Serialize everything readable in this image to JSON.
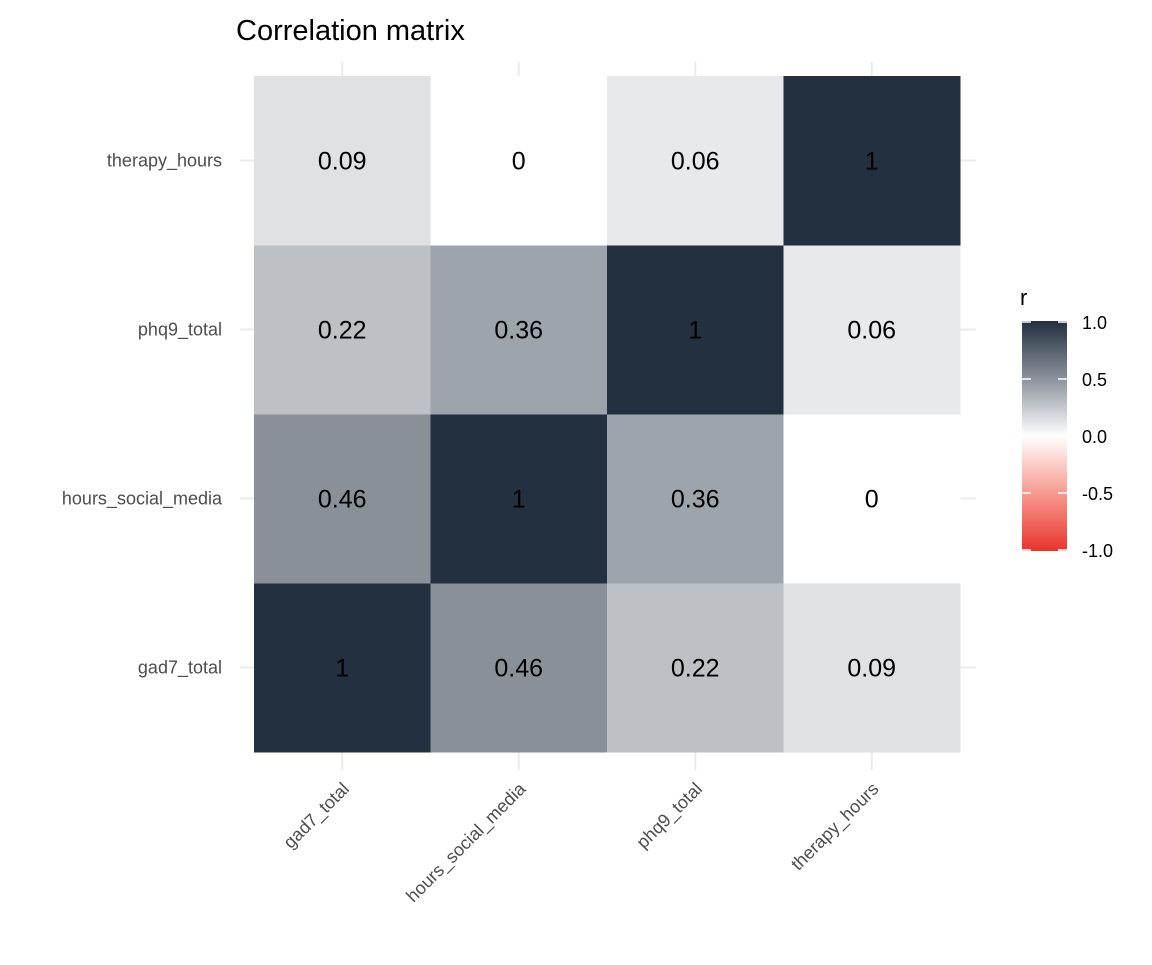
{
  "chart_data": {
    "type": "heatmap",
    "title": "Correlation matrix",
    "x_categories": [
      "gad7_total",
      "hours_social_media",
      "phq9_total",
      "therapy_hours"
    ],
    "y_categories": [
      "gad7_total",
      "hours_social_media",
      "phq9_total",
      "therapy_hours"
    ],
    "values": [
      [
        1,
        0.46,
        0.22,
        0.09
      ],
      [
        0.46,
        1,
        0.36,
        0
      ],
      [
        0.22,
        0.36,
        1,
        0.06
      ],
      [
        0.09,
        0,
        0.06,
        1
      ]
    ],
    "legend": {
      "title": "r",
      "ticks": [
        "1.0",
        "0.5",
        "0.0",
        "-0.5",
        "-1.0"
      ],
      "range": [
        -1,
        1
      ],
      "placement": "right"
    },
    "colors": {
      "high": "#233040",
      "mid": "#ffffff",
      "low": "#e8352d"
    },
    "grid": true
  }
}
